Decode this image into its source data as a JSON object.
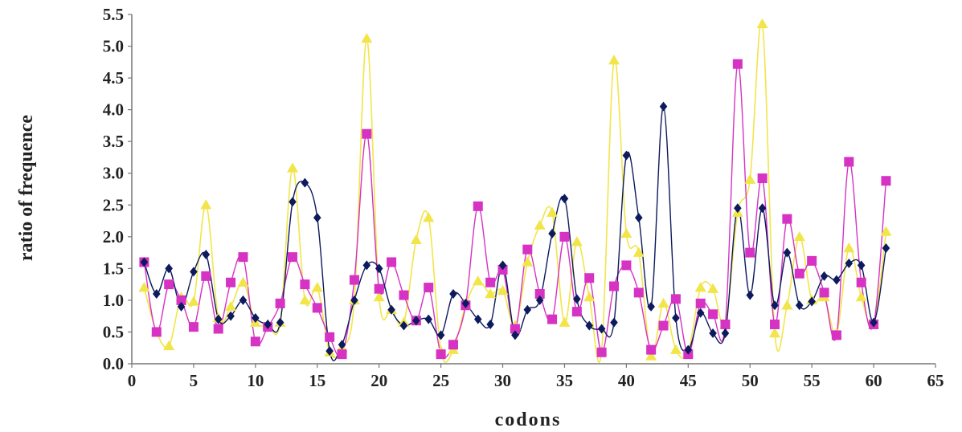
{
  "chart_data": {
    "type": "line",
    "title": "",
    "xlabel": "codons",
    "ylabel": "ratio of frequence",
    "xlim": [
      0,
      65
    ],
    "ylim": [
      0,
      5.5
    ],
    "xticks": [
      0,
      5,
      10,
      15,
      20,
      25,
      30,
      35,
      40,
      45,
      50,
      55,
      60,
      65
    ],
    "xtick_labels": [
      "0",
      "5",
      "10",
      "15",
      "20",
      "25",
      "30",
      "35",
      "40",
      "45",
      "50",
      "55",
      "60",
      "65"
    ],
    "yticks": [
      0,
      0.5,
      1,
      1.5,
      2,
      2.5,
      3,
      3.5,
      4,
      4.5,
      5,
      5.5
    ],
    "ytick_labels": [
      "0.0",
      "0.5",
      "1.0",
      "1.5",
      "2.0",
      "2.5",
      "3.0",
      "3.5",
      "4.0",
      "4.5",
      "5.0",
      "5.5"
    ],
    "grid": false,
    "legend": "none",
    "x": [
      1,
      2,
      3,
      4,
      5,
      6,
      7,
      8,
      9,
      10,
      11,
      12,
      13,
      14,
      15,
      16,
      17,
      18,
      19,
      20,
      21,
      22,
      23,
      24,
      25,
      26,
      27,
      28,
      29,
      30,
      31,
      32,
      33,
      34,
      35,
      36,
      37,
      38,
      39,
      40,
      41,
      42,
      43,
      44,
      45,
      46,
      47,
      48,
      49,
      50,
      51,
      52,
      53,
      54,
      55,
      56,
      57,
      58,
      59,
      60,
      61
    ],
    "series": [
      {
        "color": "#0d1a5e",
        "marker": "diamond",
        "values": [
          1.6,
          1.1,
          1.5,
          0.9,
          1.45,
          1.72,
          0.7,
          0.75,
          1.0,
          0.72,
          0.62,
          0.65,
          2.55,
          2.85,
          2.3,
          0.2,
          0.3,
          1.0,
          1.55,
          1.5,
          0.85,
          0.6,
          0.68,
          0.7,
          0.45,
          1.1,
          0.95,
          0.7,
          0.62,
          1.55,
          0.45,
          0.85,
          1.0,
          2.05,
          2.6,
          1.02,
          0.6,
          0.55,
          0.65,
          3.28,
          2.3,
          0.9,
          4.05,
          0.72,
          0.22,
          0.8,
          0.48,
          0.48,
          2.45,
          1.08,
          2.45,
          0.92,
          1.75,
          0.92,
          0.98,
          1.38,
          1.32,
          1.58,
          1.55,
          0.65,
          1.82
        ]
      },
      {
        "color": "#d632c4",
        "marker": "square",
        "values": [
          1.6,
          0.5,
          1.25,
          1.0,
          0.58,
          1.38,
          0.55,
          1.28,
          1.68,
          0.35,
          0.58,
          0.95,
          1.68,
          1.25,
          0.88,
          0.42,
          0.15,
          1.32,
          3.62,
          1.18,
          1.6,
          1.08,
          0.68,
          1.2,
          0.15,
          0.3,
          0.92,
          2.48,
          1.28,
          1.48,
          0.55,
          1.8,
          1.1,
          0.7,
          2.0,
          0.82,
          1.35,
          0.18,
          1.22,
          1.55,
          1.12,
          0.22,
          0.6,
          1.02,
          0.15,
          0.95,
          0.78,
          0.62,
          4.72,
          1.75,
          2.92,
          0.62,
          2.28,
          1.42,
          1.62,
          1.12,
          0.45,
          3.18,
          1.28,
          0.62,
          2.88
        ]
      },
      {
        "color": "#f2e54a",
        "marker": "triangle",
        "values": [
          1.2,
          0.5,
          0.28,
          1.05,
          0.98,
          2.5,
          0.72,
          0.9,
          1.28,
          0.65,
          0.62,
          0.65,
          3.08,
          1.0,
          1.2,
          0.18,
          0.25,
          1.0,
          5.12,
          1.05,
          0.85,
          0.65,
          1.95,
          2.3,
          0.2,
          0.22,
          0.92,
          1.3,
          1.1,
          1.15,
          0.6,
          1.6,
          2.18,
          2.38,
          0.65,
          1.92,
          1.05,
          0.2,
          4.78,
          2.05,
          1.75,
          0.12,
          0.95,
          0.22,
          0.18,
          1.2,
          1.18,
          0.62,
          2.38,
          2.9,
          5.35,
          0.48,
          0.92,
          2.0,
          1.0,
          1.05,
          0.48,
          1.82,
          1.05,
          0.62,
          2.08
        ]
      }
    ]
  }
}
